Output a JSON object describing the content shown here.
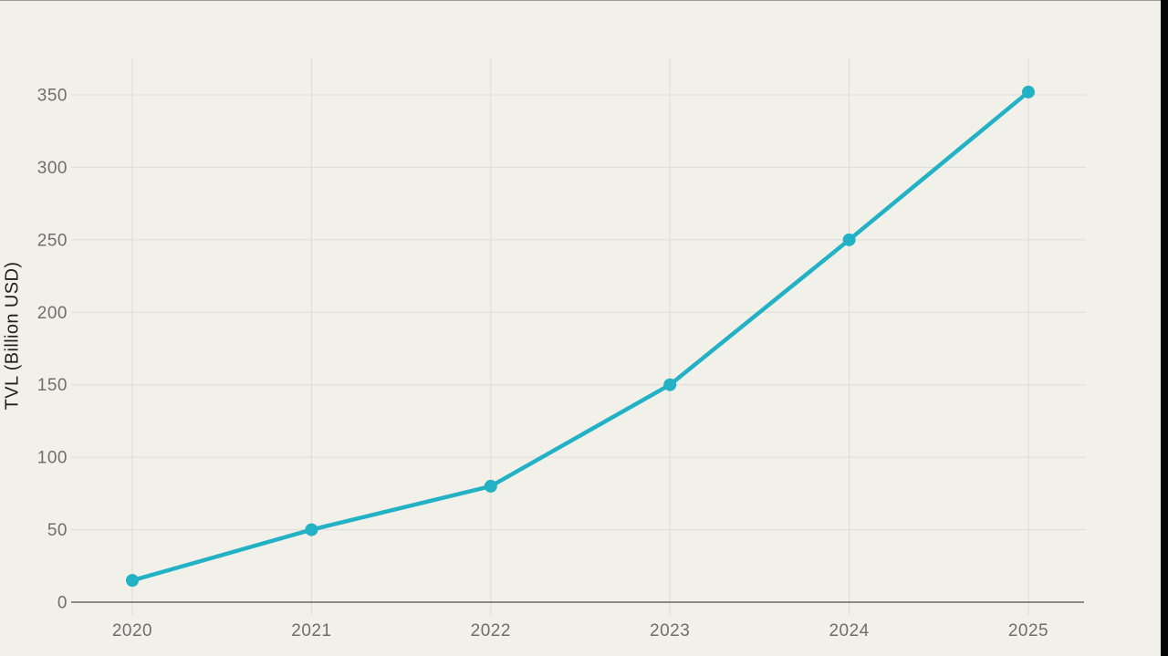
{
  "page": {
    "background": "#f1f1ea",
    "right_bar_color": "#050505",
    "top_line_color": "rgba(0,0,0,0.35)"
  },
  "chart_data": {
    "type": "line",
    "title": "",
    "xlabel": "",
    "ylabel": "TVL (Billion USD)",
    "x": [
      "2020",
      "2021",
      "2022",
      "2023",
      "2024",
      "2025"
    ],
    "series": [
      {
        "name": "TVL",
        "values": [
          15,
          50,
          80,
          150,
          250,
          352
        ]
      }
    ],
    "ylim": [
      0,
      350
    ],
    "yticks": [
      0,
      50,
      100,
      150,
      200,
      250,
      300,
      350
    ],
    "grid": true,
    "legend_position": "none",
    "line_color": "#23b1c6",
    "marker": "circle",
    "colors": {
      "background": "#f1f1ea",
      "grid": "#dddcd4",
      "axis": "#4c4c4c",
      "tick_text": "#6e6e6e",
      "label_text": "#1f1f1f"
    }
  }
}
